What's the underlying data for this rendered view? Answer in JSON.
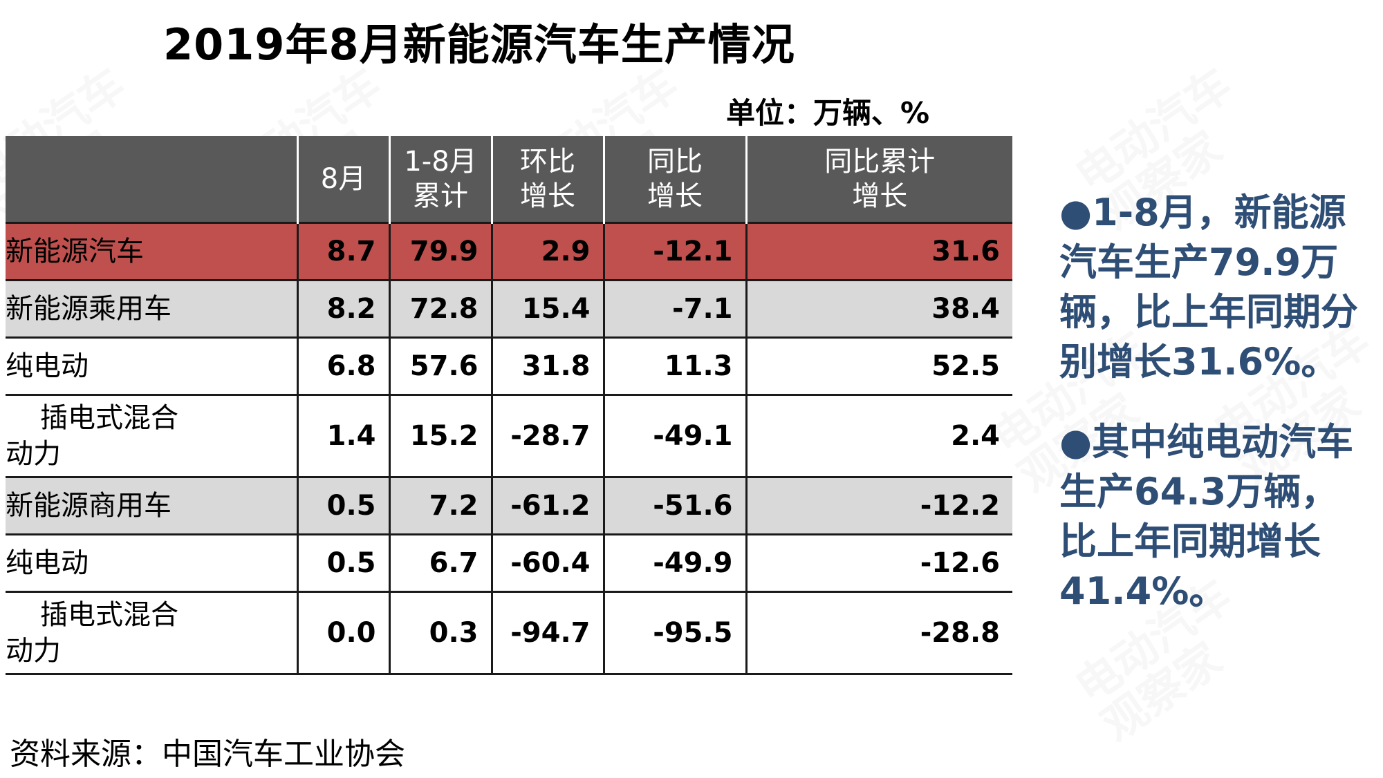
{
  "title": "2019年8月新能源汽车生产情况",
  "unit": "单位：万辆、%",
  "watermark": [
    "电动汽车",
    "观察家"
  ],
  "table": {
    "headers": [
      [
        "",
        ""
      ],
      [
        "8月",
        ""
      ],
      [
        "1-8月",
        "累计"
      ],
      [
        "环比",
        "增长"
      ],
      [
        "同比",
        "增长"
      ],
      [
        "同比累计",
        "增长"
      ]
    ],
    "rows": [
      {
        "label": [
          "新能源汽车"
        ],
        "values": [
          "8.7",
          "79.9",
          "2.9",
          "-12.1",
          "31.6"
        ]
      },
      {
        "label": [
          "新能源乘用车"
        ],
        "values": [
          "8.2",
          "72.8",
          "15.4",
          "-7.1",
          "38.4"
        ]
      },
      {
        "label": [
          "纯电动"
        ],
        "values": [
          "6.8",
          "57.6",
          "31.8",
          "11.3",
          "52.5"
        ]
      },
      {
        "label": [
          "插电式混合",
          "动力"
        ],
        "values": [
          "1.4",
          "15.2",
          "-28.7",
          "-49.1",
          "2.4"
        ]
      },
      {
        "label": [
          "新能源商用车"
        ],
        "values": [
          "0.5",
          "7.2",
          "-61.2",
          "-51.6",
          "-12.2"
        ]
      },
      {
        "label": [
          "纯电动"
        ],
        "values": [
          "0.5",
          "6.7",
          "-60.4",
          "-49.9",
          "-12.6"
        ]
      },
      {
        "label": [
          "插电式混合",
          "动力"
        ],
        "values": [
          "0.0",
          "0.3",
          "-94.7",
          "-95.5",
          "-28.8"
        ]
      }
    ]
  },
  "source": "资料来源：中国汽车工业协会",
  "notes": [
    "●1-8月，新能源汽车生产79.9万辆，比上年同期分别增长31.6%。",
    "●其中纯电动汽车生产64.3万辆，比上年同期增长41.4%。"
  ],
  "colors": {
    "header_bg": "#595959",
    "highlight_row": "#c0504d",
    "shaded_row": "#d9d9d9",
    "note_text": "#2e4e75"
  }
}
